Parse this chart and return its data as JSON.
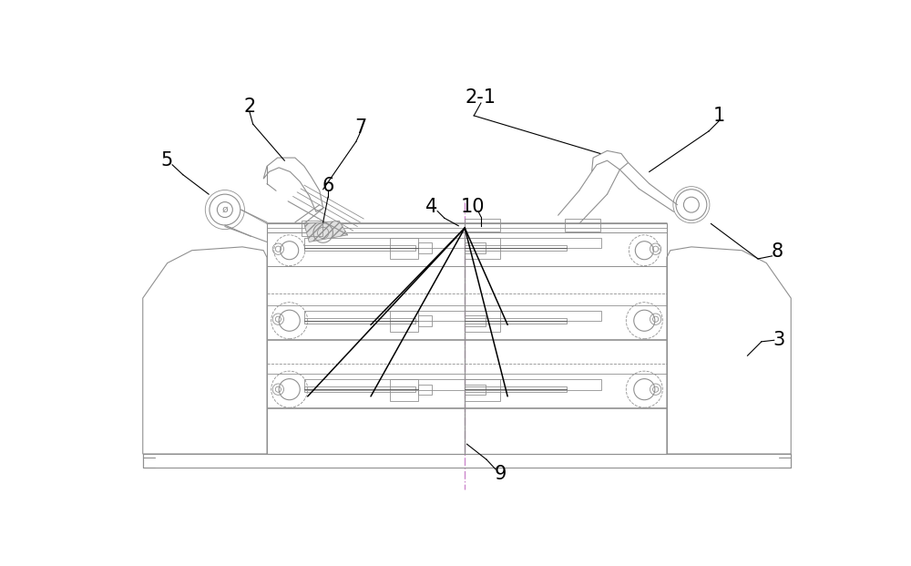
{
  "bg_color": "#ffffff",
  "lc": "#909090",
  "dc": "#505050",
  "bk": "#000000",
  "fig_width": 10.0,
  "fig_height": 6.21,
  "dpi": 100
}
